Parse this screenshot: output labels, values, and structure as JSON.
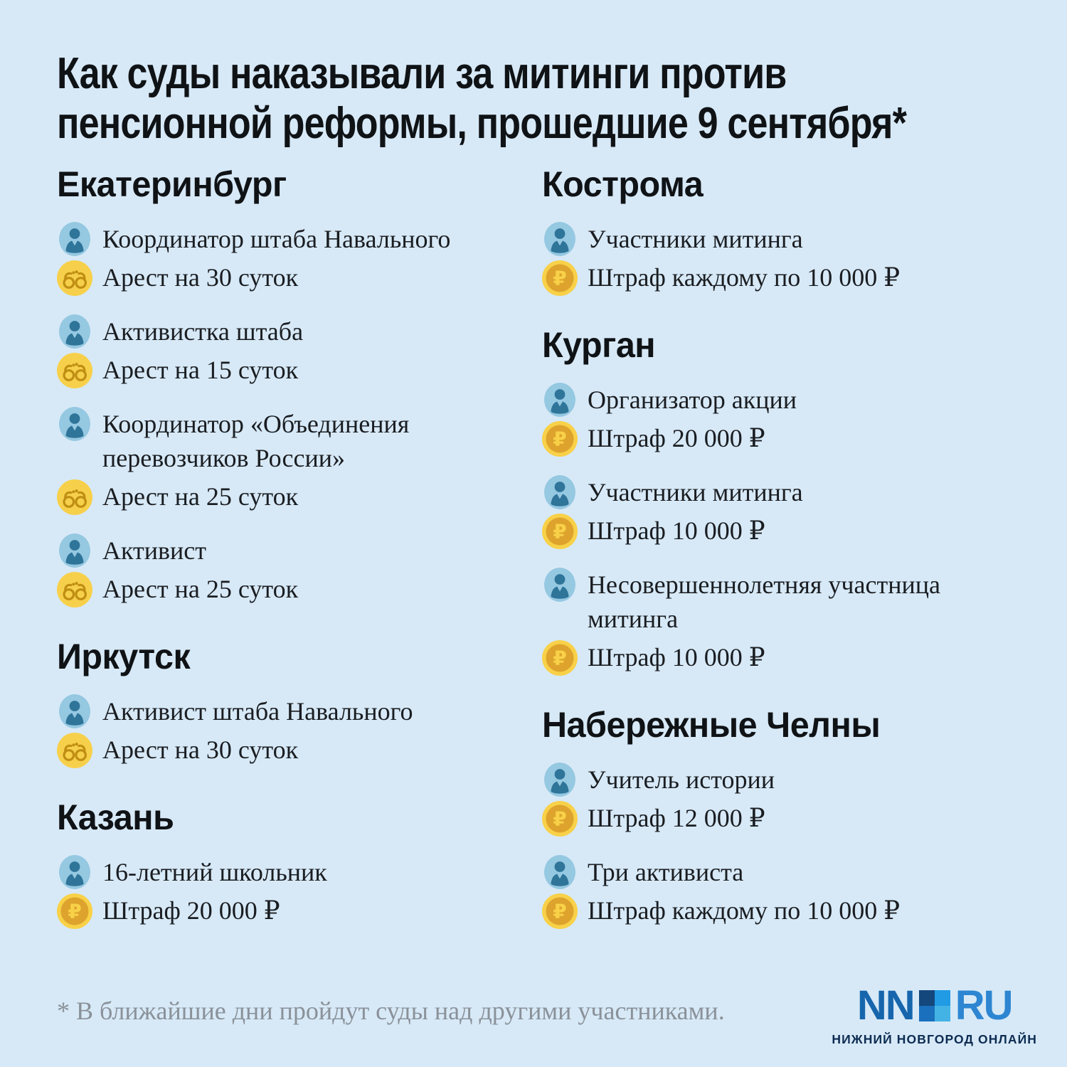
{
  "title_lines": [
    "Как суды наказывали за митинги против",
    "пенсионной реформы, прошедшие 9 сентября*"
  ],
  "columns": [
    {
      "sections": [
        {
          "city": "Екатеринбург",
          "cases": [
            {
              "who": "Координатор штаба Навального",
              "penalty": "Арест на 30 суток",
              "type": "arrest"
            },
            {
              "who": "Активистка штаба",
              "penalty": "Арест на 15 суток",
              "type": "arrest"
            },
            {
              "who": "Координатор «Объединения перевозчиков России»",
              "penalty": "Арест на 25 суток",
              "type": "arrest"
            },
            {
              "who": "Активист",
              "penalty": "Арест на 25 суток",
              "type": "arrest"
            }
          ]
        },
        {
          "city": "Иркутск",
          "cases": [
            {
              "who": "Активист штаба Навального",
              "penalty": "Арест на 30 суток",
              "type": "arrest"
            }
          ]
        },
        {
          "city": "Казань",
          "cases": [
            {
              "who": "16-летний школьник",
              "penalty": "Штраф 20 000 ₽",
              "type": "fine"
            }
          ]
        }
      ]
    },
    {
      "sections": [
        {
          "city": "Кострома",
          "cases": [
            {
              "who": "Участники митинга",
              "penalty": "Штраф каждому по 10 000 ₽",
              "type": "fine"
            }
          ]
        },
        {
          "city": "Курган",
          "cases": [
            {
              "who": "Организатор акции",
              "penalty": "Штраф 20 000 ₽",
              "type": "fine"
            },
            {
              "who": "Участники митинга",
              "penalty": "Штраф 10 000 ₽",
              "type": "fine"
            },
            {
              "who": "Несовершеннолетняя участница митинга",
              "penalty": "Штраф 10 000 ₽",
              "type": "fine"
            }
          ]
        },
        {
          "city": "Набережные Челны",
          "cases": [
            {
              "who": "Учитель истории",
              "penalty": "Штраф 12 000 ₽",
              "type": "fine"
            },
            {
              "who": "Три активиста",
              "penalty": "Штраф каждому по 10 000 ₽",
              "type": "fine"
            }
          ]
        }
      ]
    }
  ],
  "footnote": "* В ближайшие дни пройдут суды над другими участниками.",
  "logo": {
    "nn": "NN",
    "ru": "RU",
    "tagline": "НИЖНИЙ НОВГОРОД ОНЛАЙН"
  },
  "icons": {
    "person": "person-icon",
    "arrest": "handcuffs-icon",
    "fine": "ruble-coin-icon"
  },
  "colors": {
    "bg": "#d7e9f7",
    "heading": "#101316",
    "text": "#1a1d21",
    "muted": "#8a9199",
    "person_bg": "#95c8e1",
    "person_fg": "#2f7499",
    "cuff_bg": "#f7d04b",
    "cuff_fg": "#bf8e13",
    "coin_outer": "#f8d148",
    "coin_inner": "#dda32d",
    "logo_nn": "#1766ad",
    "logo_ru": "#2e86d2",
    "logo_tagline": "#0d2c52",
    "logo_sq_tl": "#14477c",
    "logo_sq_tr": "#209be4",
    "logo_sq_bl": "#1a70bd",
    "logo_sq_br": "#43b3e6"
  }
}
